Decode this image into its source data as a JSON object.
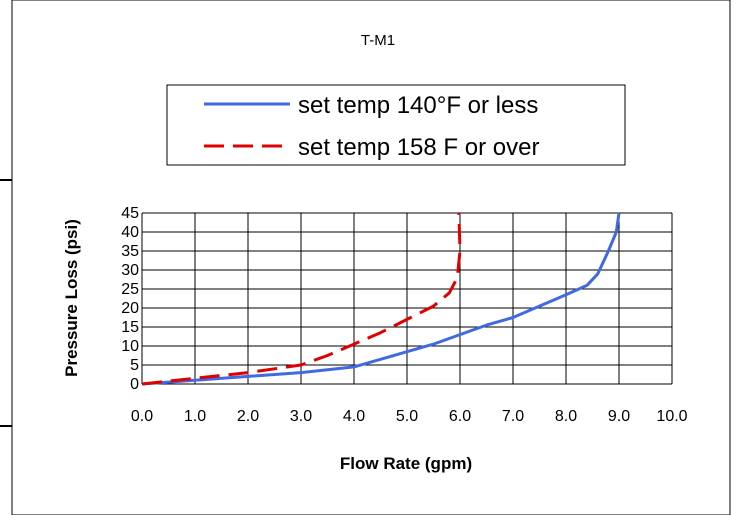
{
  "chart_data": {
    "type": "line",
    "title": "T-M1",
    "xlabel": "Flow Rate (gpm)",
    "ylabel": "Pressure Loss (psi)",
    "xlim": [
      0,
      10
    ],
    "ylim": [
      0,
      45
    ],
    "x_ticks": [
      "0.0",
      "1.0",
      "2.0",
      "3.0",
      "4.0",
      "5.0",
      "6.0",
      "7.0",
      "8.0",
      "9.0",
      "10.0"
    ],
    "y_ticks": [
      "0",
      "5",
      "10",
      "15",
      "20",
      "25",
      "30",
      "35",
      "40",
      "45"
    ],
    "grid": true,
    "legend_position": "top-center",
    "series": [
      {
        "name": "set temp 140°F or less",
        "color": "#4169e1",
        "style": "solid",
        "points": [
          [
            0.0,
            0.0
          ],
          [
            1.0,
            1.0
          ],
          [
            2.0,
            2.0
          ],
          [
            3.0,
            3.0
          ],
          [
            4.0,
            4.5
          ],
          [
            4.5,
            6.5
          ],
          [
            5.0,
            8.5
          ],
          [
            5.5,
            10.5
          ],
          [
            6.0,
            13.0
          ],
          [
            6.5,
            15.5
          ],
          [
            7.0,
            17.5
          ],
          [
            7.5,
            20.5
          ],
          [
            8.0,
            23.5
          ],
          [
            8.4,
            26.0
          ],
          [
            8.6,
            29.0
          ],
          [
            8.8,
            35.0
          ],
          [
            8.95,
            40.0
          ],
          [
            9.0,
            45.0
          ]
        ]
      },
      {
        "name": "set temp 158 F or over",
        "color": "#e00000",
        "style": "dashed",
        "points": [
          [
            0.0,
            0.0
          ],
          [
            1.0,
            1.5
          ],
          [
            2.0,
            3.0
          ],
          [
            3.0,
            5.0
          ],
          [
            3.5,
            7.5
          ],
          [
            4.0,
            10.5
          ],
          [
            4.5,
            13.5
          ],
          [
            5.0,
            17.0
          ],
          [
            5.5,
            20.5
          ],
          [
            5.8,
            24.0
          ],
          [
            5.95,
            28.0
          ],
          [
            6.0,
            35.0
          ],
          [
            5.98,
            45.0
          ]
        ]
      }
    ]
  }
}
